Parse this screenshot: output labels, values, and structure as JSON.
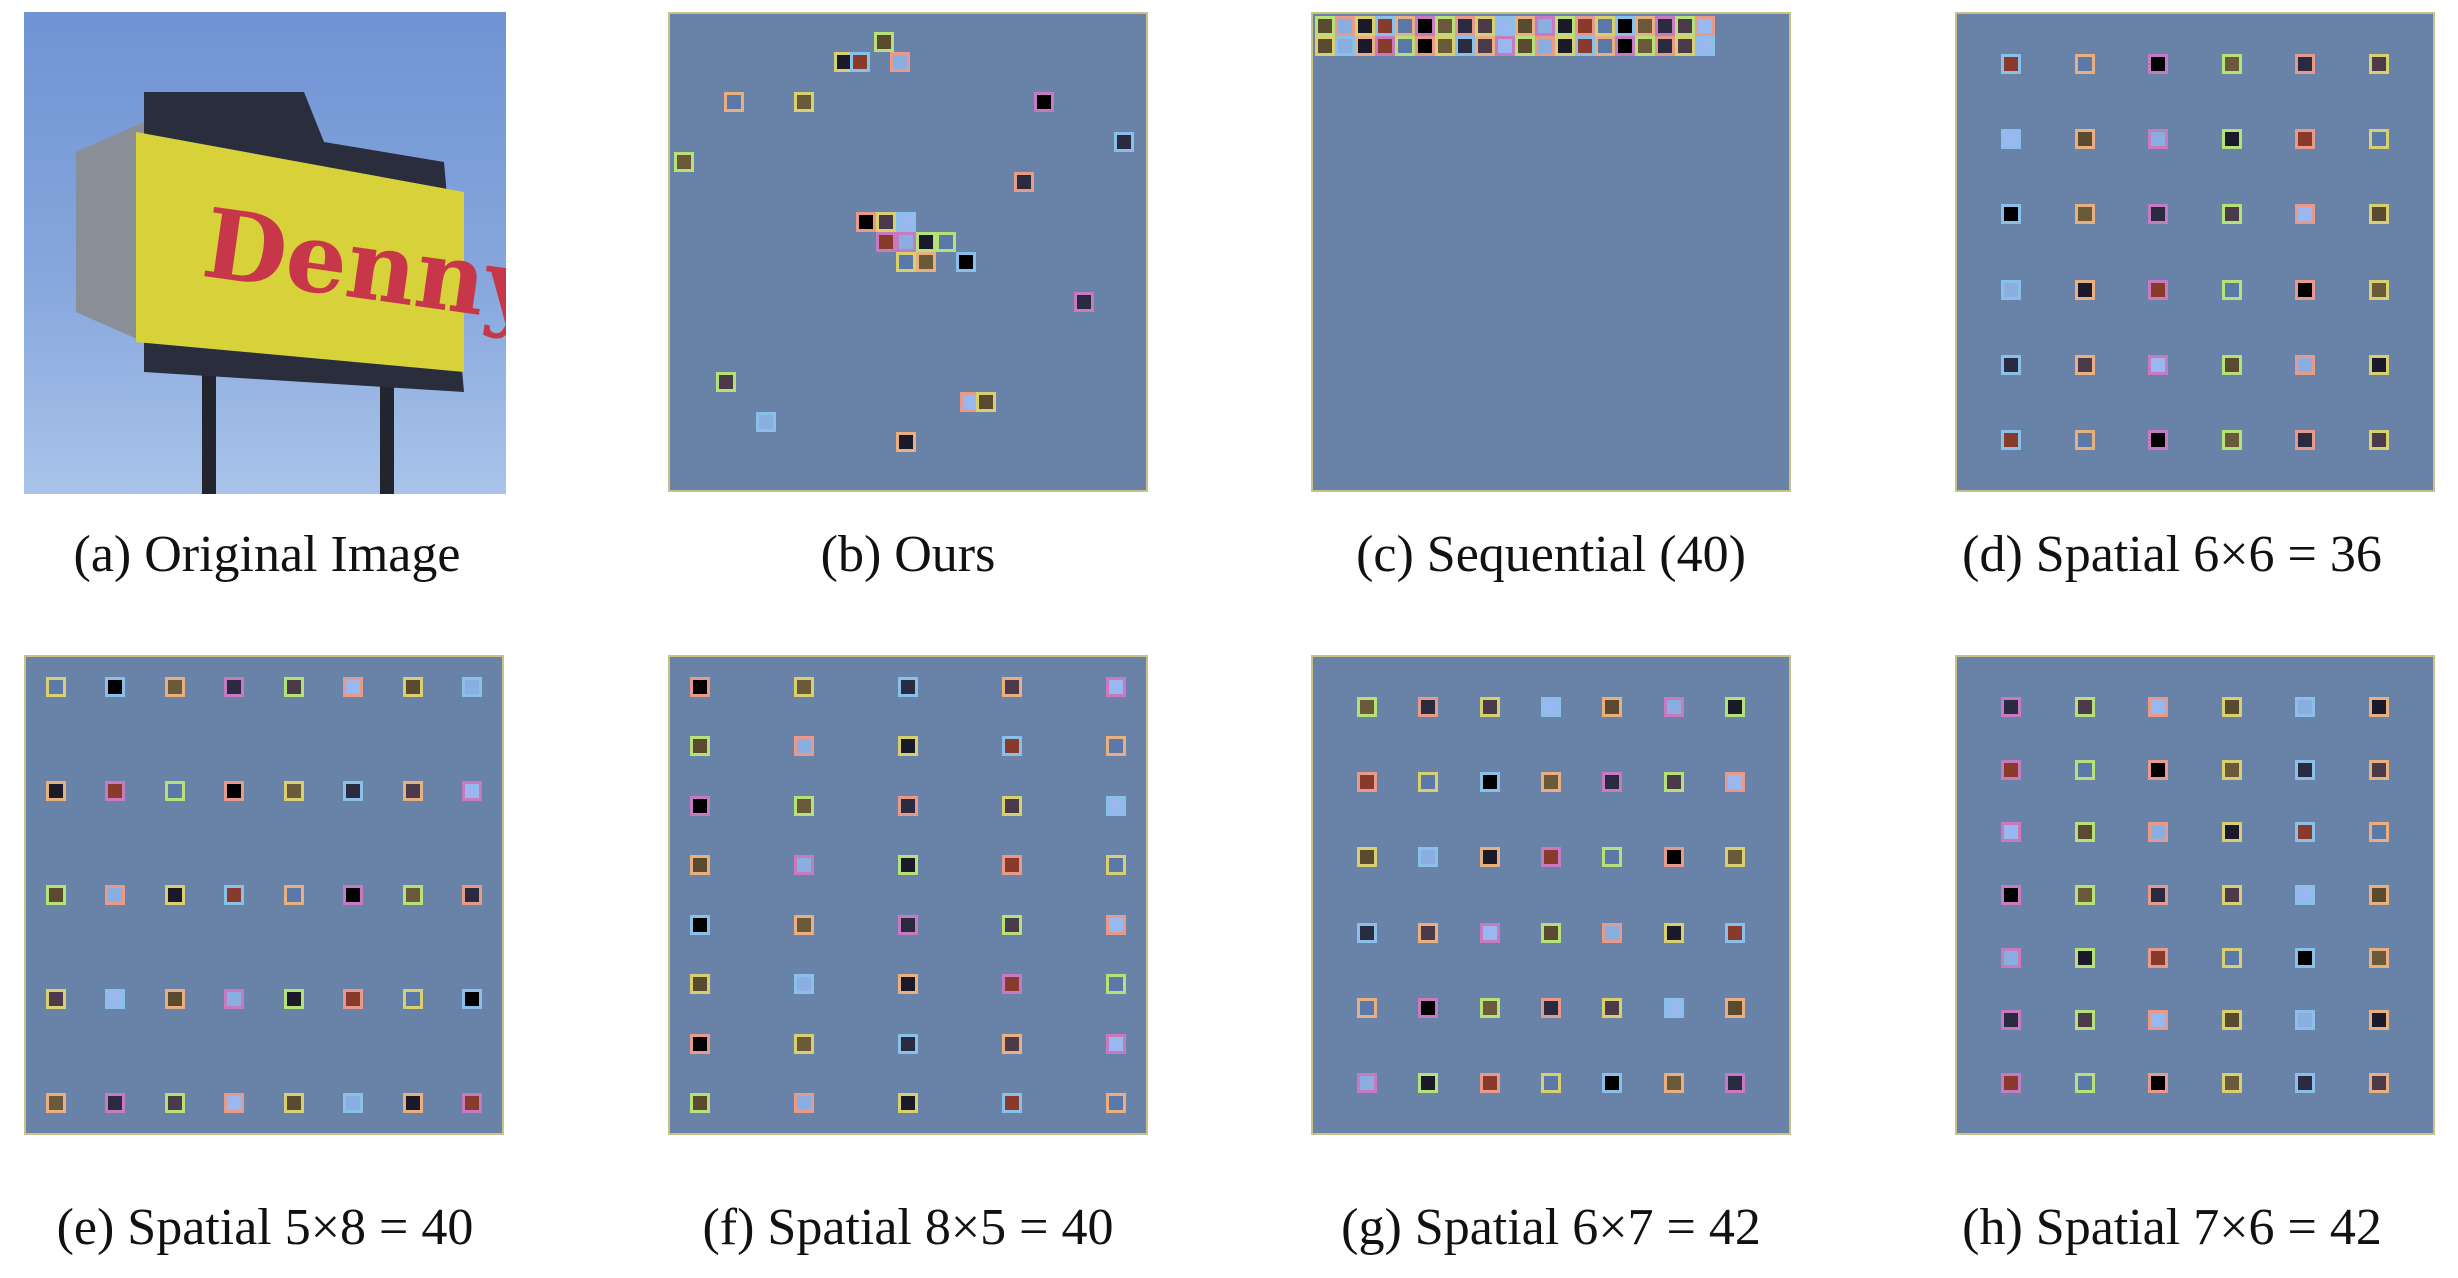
{
  "panels": [
    {
      "caption": "(a) Original Image",
      "sign_text": "Denny's"
    },
    {
      "caption": "(b) Ours"
    },
    {
      "caption": "(c) Sequential (40)"
    },
    {
      "caption": "(d) Spatial 6×6 = 36",
      "rows": 6,
      "cols": 6
    },
    {
      "caption": "(e) Spatial 5×8 = 40",
      "rows": 5,
      "cols": 8
    },
    {
      "caption": "(f) Spatial 8×5 = 40",
      "rows": 8,
      "cols": 5
    },
    {
      "caption": "(g) Spatial 6×7 = 42",
      "rows": 6,
      "cols": 7
    },
    {
      "caption": "(h) Spatial 7×6 = 42",
      "rows": 7,
      "cols": 6
    }
  ],
  "colors": {
    "canvas": "#6882a8",
    "fills": [
      "#8aaee0",
      "#5a78a8",
      "#2a2a40",
      "#5a4a30",
      "#8a3a2a",
      "#6a5a3a",
      "#9ab8f0",
      "#1a1a2a",
      "#000000",
      "#4a3a4a"
    ],
    "borders": [
      "#e89a8a",
      "#b8e078",
      "#c87ac0",
      "#e8b080",
      "#8ac0e8",
      "#d8d070"
    ]
  }
}
